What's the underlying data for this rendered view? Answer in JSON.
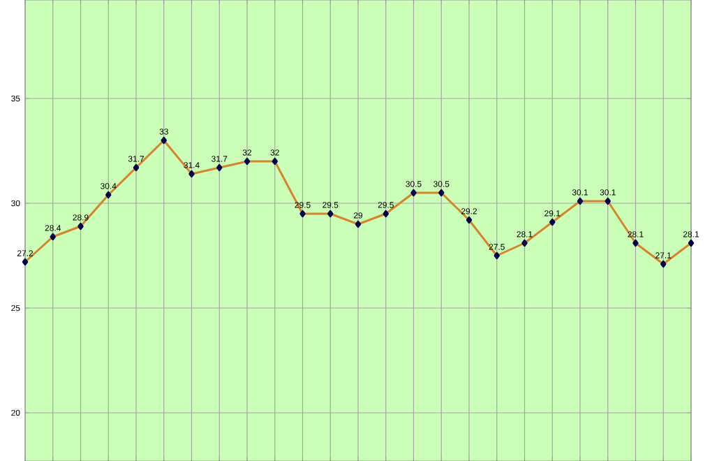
{
  "chart_data": {
    "type": "line",
    "categories": [
      null,
      null,
      null,
      null,
      null,
      null,
      null,
      null,
      null,
      null,
      null,
      null,
      null,
      null,
      null,
      null,
      null,
      null,
      null,
      null,
      null,
      null,
      null,
      null,
      null
    ],
    "series": [
      {
        "color": "#d4842c",
        "values": [
          27.2,
          28.4,
          28.9,
          30.4,
          31.7,
          33,
          31.4,
          31.7,
          32,
          32,
          29.5,
          29.5,
          29,
          29.5,
          30.5,
          30.5,
          29.2,
          27.5,
          28.1,
          29.1,
          30.1,
          30.1,
          28.1,
          27.1,
          28.1
        ]
      }
    ],
    "ylim": [
      17.7,
      39.7
    ],
    "yticks": [
      20,
      25,
      30,
      35
    ],
    "grid": true,
    "marker": "diamond",
    "line_style": "solid",
    "data_labels": true,
    "tick_labels": "y"
  }
}
